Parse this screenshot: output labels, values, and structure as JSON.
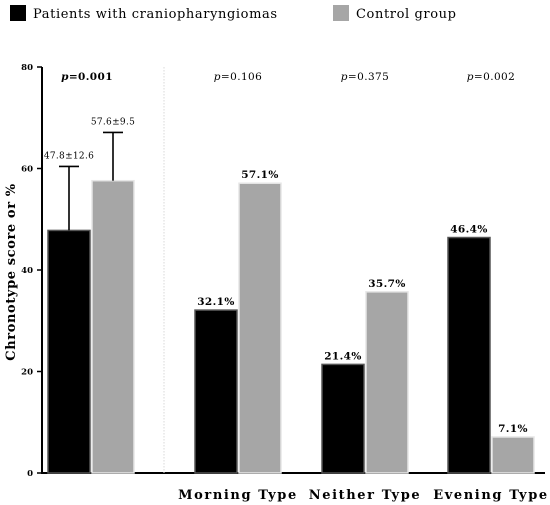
{
  "chart_data": {
    "type": "bar",
    "ylabel": "Chronotype score or %",
    "ylim": [
      0,
      80
    ],
    "yticks": [
      0,
      20,
      40,
      60,
      80
    ],
    "grid": false,
    "legend_position": "top",
    "categories": [
      "",
      "Morning Type",
      "Neither Type",
      "Evening Type"
    ],
    "series": [
      {
        "name": "Patients with craniopharyngiomas",
        "color": "#000000",
        "values": [
          47.8,
          32.1,
          21.4,
          46.4
        ],
        "labels": [
          "47.8±12.6",
          "32.1%",
          "21.4%",
          "46.4%"
        ],
        "error": [
          12.6,
          null,
          null,
          null
        ]
      },
      {
        "name": "Control group",
        "color": "#a6a6a6",
        "values": [
          57.6,
          57.1,
          35.7,
          7.1
        ],
        "labels": [
          "57.6±9.5",
          "57.1%",
          "35.7%",
          "7.1%"
        ],
        "error": [
          9.5,
          null,
          null,
          null
        ]
      }
    ],
    "p_values": [
      "p=0.001",
      "p=0.106",
      "p=0.375",
      "p=0.002"
    ]
  }
}
